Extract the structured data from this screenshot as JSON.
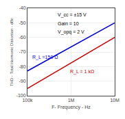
{
  "chart_data": {
    "type": "line",
    "xlabel": "F- Frequency - Hz",
    "ylabel": "THD - Total Harmonic Distortion - dBc",
    "log": "x",
    "grid": true,
    "x": [
      100000,
      10000000
    ],
    "xlim": [
      100000,
      10000000
    ],
    "xticks": [
      {
        "value": 100000,
        "label": "100k"
      },
      {
        "value": 1000000,
        "label": "1M"
      },
      {
        "value": 10000000,
        "label": "10M"
      }
    ],
    "ylim": [
      -100,
      -40
    ],
    "yticks": [
      -100,
      -90,
      -80,
      -70,
      -60,
      -50,
      -40
    ],
    "annotations": [
      "V_cc = ±15 V",
      "Gain = 10",
      "V_opq = 2 V"
    ],
    "series": [
      {
        "name": "R_L =150 Ω",
        "color": "#0000dd",
        "values": [
          -83,
          -50
        ]
      },
      {
        "name": "R_L = 1 kΩ",
        "color": "#cc0000",
        "values": [
          -95,
          -60
        ]
      }
    ]
  }
}
